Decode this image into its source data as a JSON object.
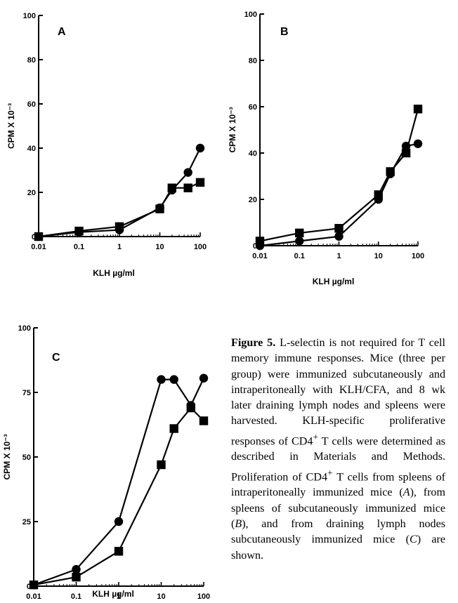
{
  "chart_data": [
    {
      "type": "line",
      "panel_label": "A",
      "xlabel": "KLH µg/ml",
      "ylabel": "CPM X 10⁻³",
      "x_scale": "log",
      "xlim": [
        0.01,
        100
      ],
      "ylim": [
        0,
        100
      ],
      "x_ticks": [
        "0.01",
        "0.1",
        "1",
        "10",
        "100"
      ],
      "y_ticks": [
        "0",
        "20",
        "40",
        "60",
        "80",
        "100"
      ],
      "grid": false,
      "series": [
        {
          "marker": "circle",
          "x": [
            0.01,
            0.1,
            1,
            10,
            20,
            50,
            100
          ],
          "y": [
            0,
            2,
            3,
            13,
            21,
            29,
            40
          ]
        },
        {
          "marker": "square",
          "x": [
            0.01,
            0.1,
            1,
            10,
            20,
            50,
            100
          ],
          "y": [
            0,
            2.5,
            4.5,
            12.5,
            22,
            22,
            24.5
          ]
        }
      ]
    },
    {
      "type": "line",
      "panel_label": "B",
      "xlabel": "KLH µg/ml",
      "ylabel": "CPM X 10⁻³",
      "x_scale": "log",
      "xlim": [
        0.01,
        100
      ],
      "ylim": [
        0,
        100
      ],
      "x_ticks": [
        "0.01",
        "0.1",
        "1",
        "10",
        "100"
      ],
      "y_ticks": [
        "0",
        "20",
        "40",
        "60",
        "80",
        "100"
      ],
      "grid": false,
      "series": [
        {
          "marker": "circle",
          "x": [
            0.01,
            0.1,
            1,
            10,
            20,
            50,
            100
          ],
          "y": [
            0,
            2,
            4,
            20,
            31,
            43,
            44
          ]
        },
        {
          "marker": "square",
          "x": [
            0.01,
            0.1,
            1,
            10,
            20,
            50,
            100
          ],
          "y": [
            2,
            5.5,
            7.5,
            22,
            32,
            40,
            59
          ]
        }
      ]
    },
    {
      "type": "line",
      "panel_label": "C",
      "xlabel": "KLH µg/ml",
      "ylabel": "CPM X 10⁻³",
      "x_scale": "log",
      "xlim": [
        0.01,
        100
      ],
      "ylim": [
        0,
        100
      ],
      "x_ticks": [
        "0.01",
        "0.1",
        "1",
        "10",
        "100"
      ],
      "y_ticks": [
        "0",
        "25",
        "50",
        "75",
        "100"
      ],
      "grid": false,
      "series": [
        {
          "marker": "circle",
          "x": [
            0.01,
            0.1,
            1,
            10,
            20,
            50,
            100
          ],
          "y": [
            0.5,
            6.5,
            25,
            80,
            80,
            70,
            80.5
          ]
        },
        {
          "marker": "square",
          "x": [
            0.01,
            0.1,
            1,
            10,
            20,
            50,
            100
          ],
          "y": [
            0.5,
            3.5,
            13.5,
            47,
            61,
            69,
            64
          ]
        }
      ]
    }
  ],
  "caption": {
    "title": "Figure 5.",
    "text_before_sup1": " L-selectin is not required for T cell memory immune responses. Mice (three per group) were immunized subcutaneously and intraperitoneally with KLH/CFA, and 8 wk later draining lymph nodes and spleens were harvested. KLH-specific proliferative responses of CD4",
    "sup1": "+",
    "text_before_sup2": " T cells were determined as described in Materials and Methods. Proliferation of CD4",
    "sup2": "+",
    "text_part_a": " T cells from spleens of intraperitoneally immunized mice (",
    "ref_a": "A",
    "text_part_b": "), from spleens of subcutaneously immunized mice (",
    "ref_b": "B",
    "text_part_c": "), and from draining lymph nodes subcutaneously immunized mice (",
    "ref_c": "C",
    "text_end": ") are shown."
  }
}
